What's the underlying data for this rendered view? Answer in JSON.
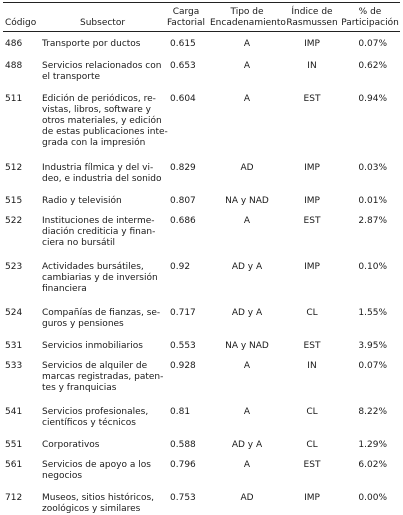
{
  "headers": {
    "codigo": "Código",
    "subsector": "Subsector",
    "carga": "Carga Factorial",
    "tipo": "Tipo de Encadenamiento",
    "indice": "Índice de Rasmussen",
    "part": "% de Participación"
  },
  "rows": [
    {
      "code": "486",
      "sub_lines": [
        "Transporte por ductos"
      ],
      "carga": "0.615",
      "tipo": "A",
      "indice": "IMP",
      "part": "0.07%"
    },
    {
      "code": "488",
      "sub_lines": [
        "Servicios relacionados con",
        "el transporte"
      ],
      "carga": "0.653",
      "tipo": "A",
      "indice": "IN",
      "part": "0.62%"
    },
    {
      "code": "511",
      "sub_lines": [
        "Edición de periódicos, re-",
        "vistas, libros, software y",
        "otros materiales, y edición",
        "de estas publicaciones inte-",
        "grada con la impresión"
      ],
      "carga": "0.604",
      "tipo": "A",
      "indice": "EST",
      "part": "0.94%"
    },
    {
      "code": "512",
      "sub_lines": [
        "Industria fílmica y del vi-",
        "deo, e industria del sonido"
      ],
      "carga": "0.829",
      "tipo": "AD",
      "indice": "IMP",
      "part": "0.03%"
    },
    {
      "code": "515",
      "sub_lines": [
        "Radio y televisión"
      ],
      "carga": "0.807",
      "tipo": "NA y NAD",
      "indice": "IMP",
      "part": "0.01%"
    },
    {
      "code": "522",
      "sub_lines": [
        "Instituciones de interme-",
        "diación crediticia y finan-",
        "ciera no bursátil"
      ],
      "carga": "0.686",
      "tipo": "A",
      "indice": "EST",
      "part": "2.87%"
    },
    {
      "code": "523",
      "sub_lines": [
        "Actividades bursátiles,",
        "cambiarias y de inversión",
        "financiera"
      ],
      "carga": "0.92",
      "tipo": "AD y A",
      "indice": "IMP",
      "part": "0.10%"
    },
    {
      "code": "524",
      "sub_lines": [
        "Compañías de fianzas, se-",
        "guros y pensiones"
      ],
      "carga": "0.717",
      "tipo": "AD y A",
      "indice": "CL",
      "part": "1.55%"
    },
    {
      "code": "531",
      "sub_lines": [
        "Servicios inmobiliarios"
      ],
      "carga": "0.553",
      "tipo": "NA y NAD",
      "indice": "EST",
      "part": "3.95%"
    },
    {
      "code": "533",
      "sub_lines": [
        "Servicios de alquiler de",
        "marcas registradas, paten-",
        "tes y franquicias"
      ],
      "carga": "0.928",
      "tipo": "A",
      "indice": "IN",
      "part": "0.07%"
    },
    {
      "code": "541",
      "sub_lines": [
        "Servicios profesionales,",
        "científicos y técnicos"
      ],
      "carga": "0.81",
      "tipo": "A",
      "indice": "CL",
      "part": "8.22%"
    },
    {
      "code": "551",
      "sub_lines": [
        "Corporativos"
      ],
      "carga": "0.588",
      "tipo": "AD y A",
      "indice": "CL",
      "part": "1.29%"
    },
    {
      "code": "561",
      "sub_lines": [
        "Servicios de apoyo a los",
        "negocios"
      ],
      "carga": "0.796",
      "tipo": "A",
      "indice": "EST",
      "part": "6.02%"
    },
    {
      "code": "712",
      "sub_lines": [
        "Museos, sitios históricos,",
        "zoológicos y similares"
      ],
      "carga": "0.753",
      "tipo": "AD",
      "indice": "IMP",
      "part": "0.00%"
    }
  ]
}
